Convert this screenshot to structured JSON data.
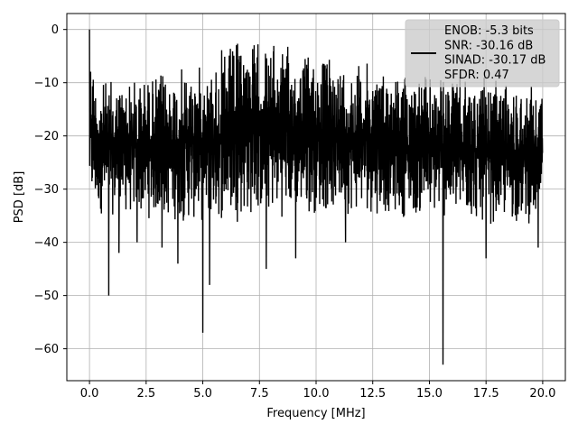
{
  "chart_data": {
    "type": "line",
    "xlabel": "Frequency [MHz]",
    "ylabel": "PSD [dB]",
    "xlim": [
      -1.0,
      21.0
    ],
    "ylim": [
      -66.0,
      3.0
    ],
    "x_ticks": [
      0.0,
      2.5,
      5.0,
      7.5,
      10.0,
      12.5,
      15.0,
      17.5,
      20.0
    ],
    "x_tick_labels": [
      "0.0",
      "2.5",
      "5.0",
      "7.5",
      "10.0",
      "12.5",
      "15.0",
      "17.5",
      "20.0"
    ],
    "y_ticks": [
      0,
      -10,
      -20,
      -30,
      -40,
      -50,
      -60
    ],
    "y_tick_labels": [
      "0",
      "−10",
      "−20",
      "−30",
      "−40",
      "−50",
      "−60"
    ],
    "grid": true,
    "legend_placement": "upper-right",
    "legend": [
      "ENOB: -5.3 bits",
      "SNR: -30.16 dB",
      "SINAD: -30.17 dB",
      "SFDR: 0.47"
    ],
    "series": [
      {
        "color": "#000000",
        "x_range": [
          0.0,
          20.0
        ],
        "peak": {
          "x": 0.0,
          "y": 0.0
        },
        "upper_envelope": [
          [
            0.0,
            0.0
          ],
          [
            0.3,
            -9
          ],
          [
            1.0,
            -9
          ],
          [
            2.5,
            -8
          ],
          [
            5.0,
            -6
          ],
          [
            6.8,
            -0.5
          ],
          [
            9.0,
            -3
          ],
          [
            12.5,
            -6
          ],
          [
            15.0,
            -8
          ],
          [
            17.5,
            -9
          ],
          [
            20.0,
            -10
          ]
        ],
        "lower_envelope": [
          [
            0.0,
            -35
          ],
          [
            2.5,
            -36
          ],
          [
            5.0,
            -37
          ],
          [
            7.5,
            -36
          ],
          [
            10.0,
            -35
          ],
          [
            12.5,
            -35
          ],
          [
            15.0,
            -36
          ],
          [
            17.5,
            -37
          ],
          [
            20.0,
            -37
          ]
        ],
        "notable_dips": [
          {
            "x": 0.85,
            "y": -50
          },
          {
            "x": 1.3,
            "y": -42
          },
          {
            "x": 2.1,
            "y": -40
          },
          {
            "x": 3.2,
            "y": -41
          },
          {
            "x": 3.9,
            "y": -44
          },
          {
            "x": 5.0,
            "y": -57
          },
          {
            "x": 5.3,
            "y": -48
          },
          {
            "x": 7.8,
            "y": -45
          },
          {
            "x": 9.1,
            "y": -43
          },
          {
            "x": 11.3,
            "y": -40
          },
          {
            "x": 15.6,
            "y": -63
          },
          {
            "x": 17.5,
            "y": -43
          },
          {
            "x": 19.8,
            "y": -41
          }
        ]
      }
    ]
  }
}
